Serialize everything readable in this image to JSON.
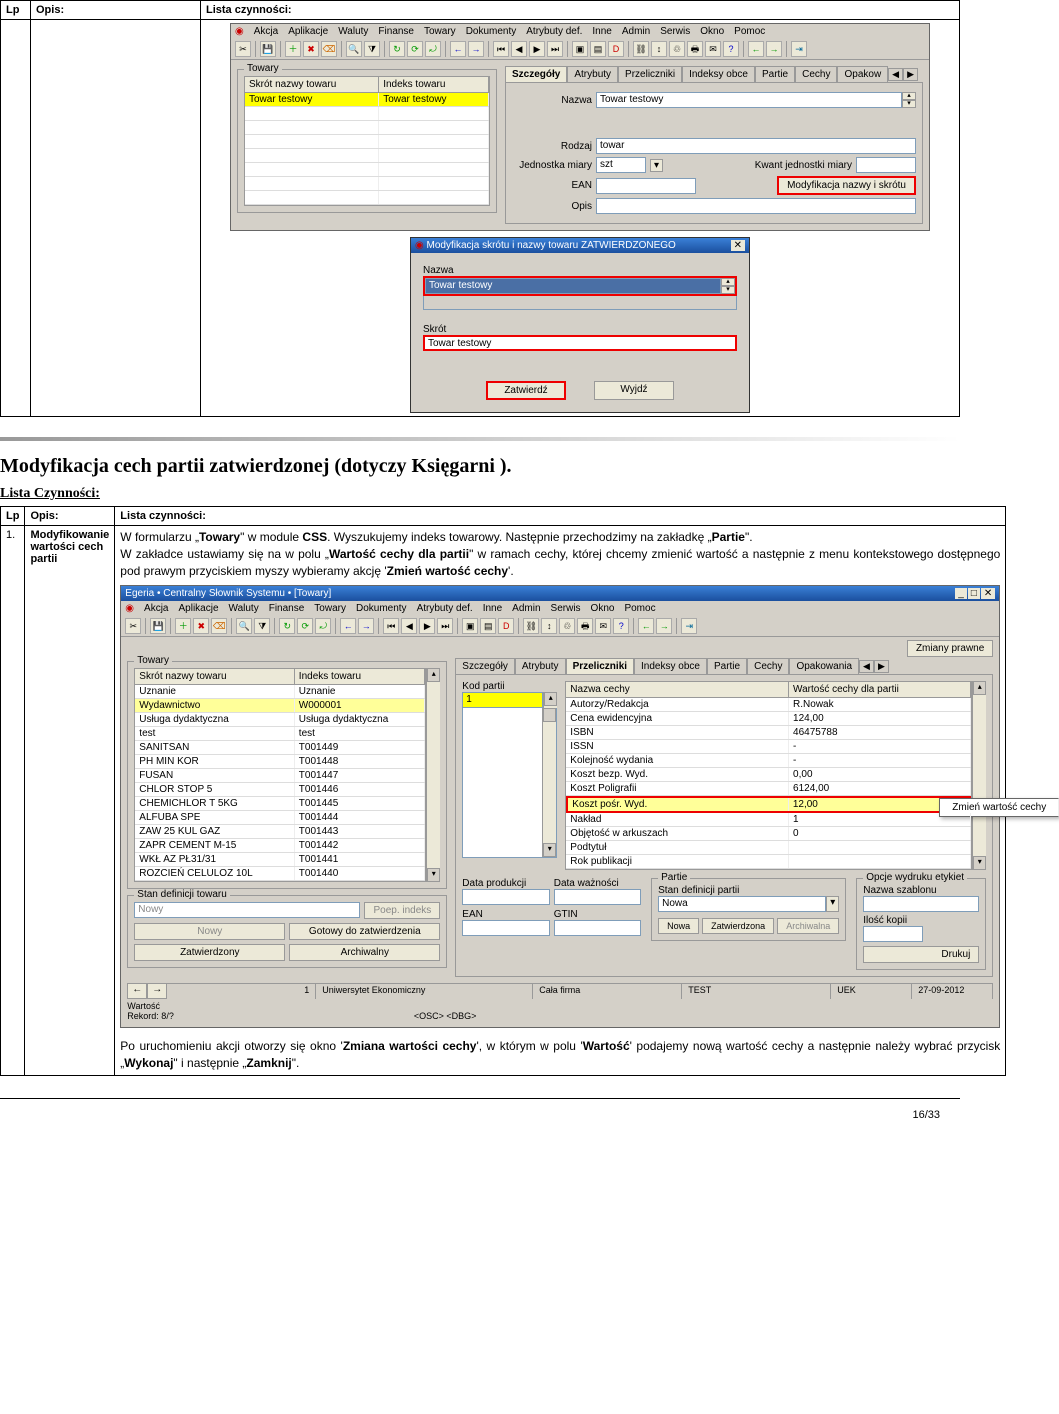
{
  "table1": {
    "h_lp": "Lp",
    "h_opis": "Opis:",
    "h_lista": "Lista czynności:"
  },
  "app1": {
    "menu": [
      "Akcja",
      "Aplikacje",
      "Waluty",
      "Finanse",
      "Towary",
      "Dokumenty",
      "Atrybuty def.",
      "Inne",
      "Admin",
      "Serwis",
      "Okno",
      "Pomoc"
    ],
    "towary_title": "Towary",
    "grid_headers": [
      "Skrót nazwy towaru",
      "Indeks towaru"
    ],
    "grid_row0": [
      "Towar testowy",
      "Towar testowy"
    ],
    "tabs": [
      "Szczegóły",
      "Atrybuty",
      "Przeliczniki",
      "Indeksy obce",
      "Partie",
      "Cechy",
      "Opakow"
    ],
    "lbl_nazwa": "Nazwa",
    "val_nazwa": "Towar testowy",
    "lbl_rodzaj": "Rodzaj",
    "val_rodzaj": "towar",
    "lbl_jm": "Jednostka miary",
    "val_jm": "szt",
    "lbl_kwant": "Kwant jednostki miary",
    "lbl_ean": "EAN",
    "btn_mod": "Modyfikacja nazwy i skrótu",
    "lbl_opis": "Opis"
  },
  "dialog1": {
    "title": "Modyfikacja skrótu i nazwy towaru ZATWIERDZONEGO",
    "lbl_nazwa": "Nazwa",
    "val_nazwa": "Towar testowy",
    "lbl_skrot": "Skrót",
    "val_skrot": "Towar testowy",
    "btn_zatwierdz": "Zatwierdź",
    "btn_wyjdz": "Wyjdź"
  },
  "section2": {
    "title": "Modyfikacja cech partii zatwierdzonej (dotyczy Księgarni ).",
    "subtitle": "Lista Czynności:"
  },
  "table2": {
    "h_lp": "Lp",
    "h_opis": "Opis:",
    "h_lista": "Lista czynności:",
    "r1_lp": "1.",
    "r1_opis": "Modyfikowanie wartości cech partii",
    "r1_para1_a": "W formularzu „",
    "r1_para1_b": "Towary",
    "r1_para1_c": "\" w module ",
    "r1_para1_d": "CSS",
    "r1_para1_e": ". Wyszukujemy indeks towarowy. Następnie przechodzimy na zakładkę „",
    "r1_para1_f": "Partie",
    "r1_para1_g": "\".",
    "r1_para2_a": "W zakładce ustawiamy się na w polu „",
    "r1_para2_b": "Wartość cechy dla partii",
    "r1_para2_c": "\" w ramach cechy, której chcemy zmienić wartość a następnie z menu kontekstowego dostępnego pod prawym przyciskiem myszy wybieramy akcję '",
    "r1_para2_d": "Zmień wartość cechy",
    "r1_para2_e": "'.",
    "r1_para3_a": "Po uruchomieniu akcji otworzy się okno '",
    "r1_para3_b": "Zmiana wartości cechy",
    "r1_para3_c": "', w którym w polu '",
    "r1_para3_d": "Wartość",
    "r1_para3_e": "' podajemy nową wartość cechy a następnie należy wybrać przycisk „",
    "r1_para3_f": "Wykonaj",
    "r1_para3_g": "\" i następnie „",
    "r1_para3_h": "Zamknij",
    "r1_para3_i": "\"."
  },
  "app2": {
    "title": "Egeria • Centralny Słownik Systemu • [Towary]",
    "menu": [
      "Akcja",
      "Aplikacje",
      "Waluty",
      "Finanse",
      "Towary",
      "Dokumenty",
      "Atrybuty def.",
      "Inne",
      "Admin",
      "Serwis",
      "Okno",
      "Pomoc"
    ],
    "btn_zmiany": "Zmiany prawne",
    "towary_title": "Towary",
    "grid_headers": [
      "Skrót nazwy towaru",
      "Indeks towaru"
    ],
    "rows": [
      [
        "Uznanie",
        "Uznanie"
      ],
      [
        "Wydawnictwo",
        "W000001"
      ],
      [
        "Usługa dydaktyczna",
        "Usługa dydaktyczna"
      ],
      [
        "test",
        "test"
      ],
      [
        "SANITSAN",
        "T001449"
      ],
      [
        "PH MIN KOR",
        "T001448"
      ],
      [
        "FUSAN",
        "T001447"
      ],
      [
        "CHLOR STOP 5",
        "T001446"
      ],
      [
        "CHEMICHLOR T 5KG",
        "T001445"
      ],
      [
        "ALFUBA SPE",
        "T001444"
      ],
      [
        "ZAW 25 KUL GAZ",
        "T001443"
      ],
      [
        "ZAPR CEMENT M-15",
        "T001442"
      ],
      [
        "WKŁ AZ PŁ31/31",
        "T001441"
      ],
      [
        "ROZCIEŃ CELULOZ 10L",
        "T001440"
      ]
    ],
    "tabs": [
      "Szczegóły",
      "Atrybuty",
      "Przeliczniki",
      "Indeksy obce",
      "Partie",
      "Cechy",
      "Opakowania"
    ],
    "lbl_kod": "Kod partii",
    "val_kod": "1",
    "props_h": [
      "Nazwa cechy",
      "Wartość cechy dla partii"
    ],
    "props": [
      [
        "Autorzy/Redakcja",
        "R.Nowak"
      ],
      [
        "Cena ewidencyjna",
        "124,00"
      ],
      [
        "ISBN",
        "46475788"
      ],
      [
        "ISSN",
        "-"
      ],
      [
        "Kolejność wydania",
        "-"
      ],
      [
        "Koszt bezp. Wyd.",
        "0,00"
      ],
      [
        "Koszt Poligrafii",
        "6124,00"
      ],
      [
        "Koszt pośr. Wyd.",
        "12,00"
      ],
      [
        "Nakład",
        "1"
      ],
      [
        "Objętość w arkuszach",
        "0"
      ],
      [
        "Podtytuł",
        ""
      ],
      [
        "Rok publikacji",
        ""
      ]
    ],
    "ctx_item": "Zmień wartość cechy",
    "lbl_data_prod": "Data produkcji",
    "lbl_data_waz": "Data ważności",
    "lbl_ean": "EAN",
    "lbl_gtin": "GTIN",
    "lbl_stan_def_partii": "Stan definicji partii",
    "val_stan_partii": "Nowa",
    "grp_partie": "Partie",
    "grp_opcje": "Opcje wydruku etykiet",
    "lbl_nazwa_szab": "Nazwa szablonu",
    "lbl_ilosc_kopii": "Ilość kopii",
    "lbl_stan_def_towaru": "Stan definicji towaru",
    "val_stan_towaru": "Nowy",
    "btn_poep": "Poep. indeks",
    "btn_nowy": "Nowy",
    "btn_gotowy": "Gotowy do zatwierdzenia",
    "btn_zatwierdzony": "Zatwierdzony",
    "btn_archiwalny": "Archiwalny",
    "btn_nowa": "Nowa",
    "btn_zatwierdzona": "Zatwierdzona",
    "btn_archiwalna": "Archiwalna",
    "btn_drukuj": "Drukuj",
    "status_items": [
      "1",
      "Uniwersytet Ekonomiczny",
      "Cała firma",
      "TEST",
      "UEK",
      "27-09-2012"
    ],
    "foot1": "Wartość",
    "foot2": "Rekord: 8/?",
    "foot3": "<OSC> <DBG>"
  },
  "pagefoot": "16/33"
}
